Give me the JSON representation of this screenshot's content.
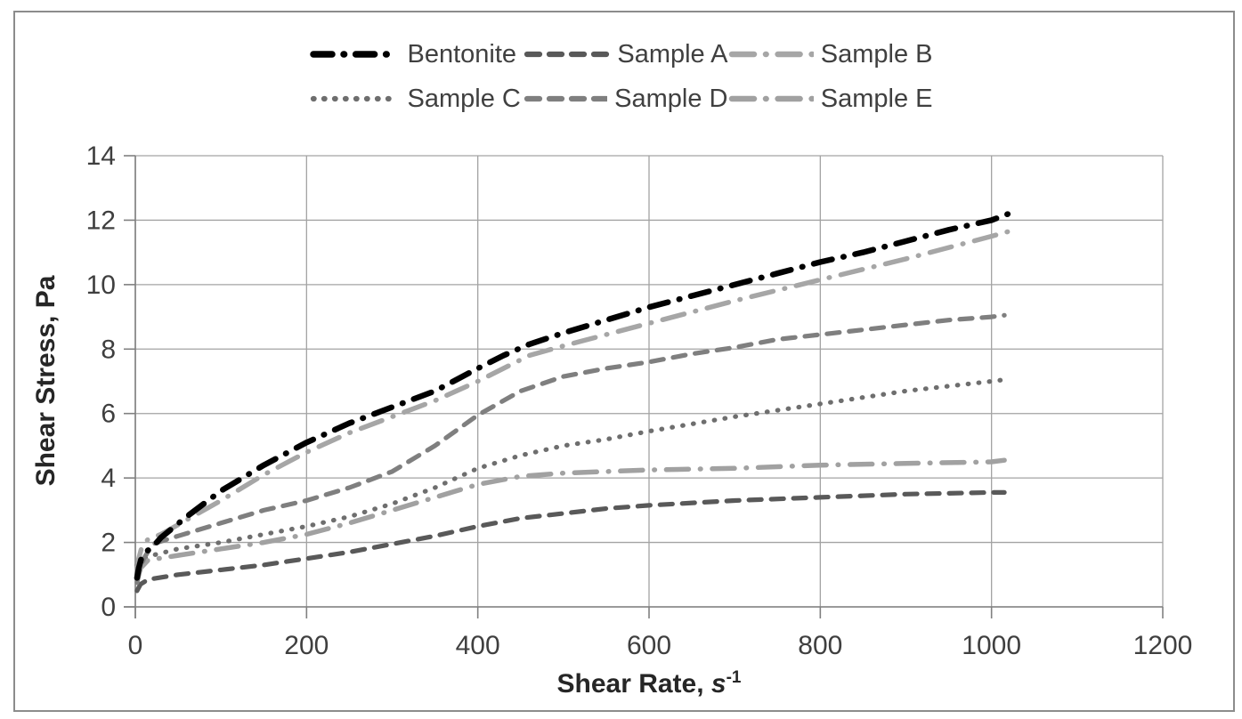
{
  "figure": {
    "background": "#ffffff",
    "frame_border_color": "#8c8c8c"
  },
  "axes": {
    "y_title": "Shear Stress, Pa",
    "x_title_prefix": "Shear Rate, ",
    "x_title_var": "s",
    "x_title_sup": "-1",
    "gridline_color": "#a3a3a3",
    "axis_color": "#808080",
    "tick_label_color": "#3f3f3f"
  },
  "chart_data": {
    "type": "line",
    "title": "",
    "xlabel": "Shear Rate, s⁻¹",
    "ylabel": "Shear Stress, Pa",
    "xlim": [
      0,
      1200
    ],
    "ylim": [
      0,
      14
    ],
    "x_ticks": [
      0,
      200,
      400,
      600,
      800,
      1000,
      1200
    ],
    "y_ticks": [
      0,
      2,
      4,
      6,
      8,
      10,
      12,
      14
    ],
    "grid": true,
    "legend_position": "top",
    "series": [
      {
        "name": "Bentonite",
        "color": "#000000",
        "style": "bold-dash-dot",
        "points": [
          [
            2,
            0.9
          ],
          [
            4,
            1.2
          ],
          [
            7,
            1.5
          ],
          [
            12,
            1.7
          ],
          [
            20,
            1.85
          ],
          [
            30,
            2.15
          ],
          [
            60,
            2.8
          ],
          [
            100,
            3.6
          ],
          [
            150,
            4.4
          ],
          [
            200,
            5.1
          ],
          [
            250,
            5.7
          ],
          [
            300,
            6.2
          ],
          [
            350,
            6.7
          ],
          [
            400,
            7.4
          ],
          [
            430,
            7.8
          ],
          [
            460,
            8.15
          ],
          [
            500,
            8.5
          ],
          [
            550,
            8.9
          ],
          [
            600,
            9.3
          ],
          [
            650,
            9.65
          ],
          [
            700,
            10.0
          ],
          [
            750,
            10.35
          ],
          [
            800,
            10.7
          ],
          [
            850,
            11.0
          ],
          [
            900,
            11.35
          ],
          [
            950,
            11.7
          ],
          [
            1000,
            12.0
          ],
          [
            1020,
            12.2
          ]
        ]
      },
      {
        "name": "Sample A",
        "color": "#595959",
        "style": "dash",
        "points": [
          [
            2,
            0.5
          ],
          [
            6,
            0.7
          ],
          [
            15,
            0.85
          ],
          [
            50,
            1.0
          ],
          [
            100,
            1.15
          ],
          [
            150,
            1.3
          ],
          [
            200,
            1.5
          ],
          [
            250,
            1.7
          ],
          [
            300,
            1.95
          ],
          [
            350,
            2.2
          ],
          [
            400,
            2.5
          ],
          [
            450,
            2.75
          ],
          [
            500,
            2.9
          ],
          [
            550,
            3.05
          ],
          [
            600,
            3.15
          ],
          [
            700,
            3.3
          ],
          [
            800,
            3.4
          ],
          [
            900,
            3.5
          ],
          [
            1000,
            3.55
          ],
          [
            1015,
            3.55
          ]
        ]
      },
      {
        "name": "Sample B",
        "color": "#a6a6a6",
        "style": "dash-dot",
        "points": [
          [
            2,
            1.1
          ],
          [
            4,
            1.5
          ],
          [
            8,
            1.9
          ],
          [
            15,
            2.1
          ],
          [
            30,
            2.25
          ],
          [
            60,
            2.7
          ],
          [
            100,
            3.3
          ],
          [
            150,
            4.1
          ],
          [
            200,
            4.8
          ],
          [
            250,
            5.4
          ],
          [
            300,
            5.9
          ],
          [
            350,
            6.4
          ],
          [
            400,
            7.0
          ],
          [
            430,
            7.4
          ],
          [
            460,
            7.8
          ],
          [
            500,
            8.1
          ],
          [
            550,
            8.45
          ],
          [
            600,
            8.8
          ],
          [
            700,
            9.5
          ],
          [
            800,
            10.15
          ],
          [
            900,
            10.8
          ],
          [
            1000,
            11.5
          ],
          [
            1020,
            11.65
          ]
        ]
      },
      {
        "name": "Sample C",
        "color": "#6e6e6e",
        "style": "dot",
        "points": [
          [
            2,
            1.3
          ],
          [
            10,
            1.5
          ],
          [
            20,
            1.6
          ],
          [
            50,
            1.8
          ],
          [
            100,
            2.0
          ],
          [
            150,
            2.25
          ],
          [
            200,
            2.5
          ],
          [
            250,
            2.8
          ],
          [
            300,
            3.2
          ],
          [
            350,
            3.7
          ],
          [
            400,
            4.3
          ],
          [
            450,
            4.7
          ],
          [
            500,
            5.0
          ],
          [
            550,
            5.2
          ],
          [
            600,
            5.45
          ],
          [
            700,
            5.9
          ],
          [
            800,
            6.3
          ],
          [
            900,
            6.7
          ],
          [
            1000,
            7.0
          ],
          [
            1015,
            7.05
          ]
        ]
      },
      {
        "name": "Sample D",
        "color": "#7f7f7f",
        "style": "dash",
        "points": [
          [
            2,
            0.75
          ],
          [
            5,
            1.1
          ],
          [
            10,
            1.5
          ],
          [
            20,
            1.95
          ],
          [
            50,
            2.2
          ],
          [
            100,
            2.6
          ],
          [
            150,
            3.0
          ],
          [
            200,
            3.3
          ],
          [
            250,
            3.7
          ],
          [
            300,
            4.2
          ],
          [
            350,
            5.0
          ],
          [
            400,
            5.95
          ],
          [
            450,
            6.7
          ],
          [
            500,
            7.15
          ],
          [
            550,
            7.4
          ],
          [
            600,
            7.6
          ],
          [
            650,
            7.85
          ],
          [
            700,
            8.05
          ],
          [
            750,
            8.3
          ],
          [
            800,
            8.45
          ],
          [
            850,
            8.6
          ],
          [
            900,
            8.75
          ],
          [
            950,
            8.9
          ],
          [
            1000,
            9.0
          ],
          [
            1015,
            9.05
          ]
        ]
      },
      {
        "name": "Sample E",
        "color": "#a1a1a1",
        "style": "dash-dot",
        "points": [
          [
            2,
            0.85
          ],
          [
            6,
            1.2
          ],
          [
            15,
            1.45
          ],
          [
            50,
            1.6
          ],
          [
            100,
            1.8
          ],
          [
            150,
            2.0
          ],
          [
            200,
            2.25
          ],
          [
            250,
            2.6
          ],
          [
            300,
            3.0
          ],
          [
            350,
            3.4
          ],
          [
            400,
            3.8
          ],
          [
            450,
            4.05
          ],
          [
            500,
            4.15
          ],
          [
            600,
            4.25
          ],
          [
            700,
            4.3
          ],
          [
            800,
            4.4
          ],
          [
            900,
            4.45
          ],
          [
            1000,
            4.5
          ],
          [
            1015,
            4.55
          ]
        ]
      }
    ]
  }
}
